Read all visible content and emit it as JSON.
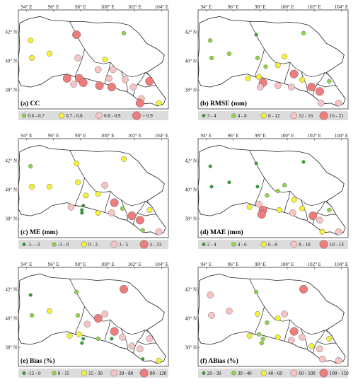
{
  "axes": {
    "lon_ticks": [
      "94° E",
      "96° E",
      "98° E",
      "100° E",
      "102° E",
      "104° E"
    ],
    "lat_ticks": [
      "42° N",
      "40° N",
      "38° N"
    ]
  },
  "colors": {
    "c1": "#2ea02e",
    "c2": "#8fd34a",
    "c3": "#f5f03a",
    "c4": "#f6c4c4",
    "c5": "#ec7d7d",
    "legend_bg": "#dcdcdc",
    "boundary": "#222222"
  },
  "panels": [
    {
      "label": "(a) CC",
      "legend": [
        {
          "label": "0.6 - 0.7",
          "cls": 2
        },
        {
          "label": "0.7 - 0.8",
          "cls": 3
        },
        {
          "label": "0.8 - 0.9",
          "cls": 4
        },
        {
          "label": "> 0.9",
          "cls": 5
        }
      ],
      "stations": [
        {
          "lon": 94.3,
          "lat": 41.4,
          "cls": 3
        },
        {
          "lon": 94.4,
          "lat": 40.2,
          "cls": 3
        },
        {
          "lon": 95.7,
          "lat": 40.5,
          "cls": 3
        },
        {
          "lon": 97.7,
          "lat": 41.8,
          "cls": 5
        },
        {
          "lon": 97.8,
          "lat": 40.2,
          "cls": 4
        },
        {
          "lon": 101.2,
          "lat": 41.9,
          "cls": 2
        },
        {
          "lon": 99.8,
          "lat": 40.1,
          "cls": 3
        },
        {
          "lon": 99.3,
          "lat": 39.4,
          "cls": 4
        },
        {
          "lon": 100.4,
          "lat": 39.4,
          "cls": 4
        },
        {
          "lon": 100.1,
          "lat": 38.8,
          "cls": 4
        },
        {
          "lon": 97.0,
          "lat": 38.8,
          "cls": 5
        },
        {
          "lon": 97.9,
          "lat": 38.8,
          "cls": 5
        },
        {
          "lon": 98.2,
          "lat": 38.5,
          "cls": 5
        },
        {
          "lon": 97.5,
          "lat": 38.4,
          "cls": 4
        },
        {
          "lon": 99.4,
          "lat": 38.3,
          "cls": 5
        },
        {
          "lon": 100.3,
          "lat": 38.2,
          "cls": 5
        },
        {
          "lon": 101.3,
          "lat": 38.7,
          "cls": 4
        },
        {
          "lon": 101.9,
          "lat": 38.2,
          "cls": 4
        },
        {
          "lon": 102.5,
          "lat": 37.4,
          "cls": 4
        },
        {
          "lon": 103.1,
          "lat": 38.6,
          "cls": 5
        },
        {
          "lon": 102.4,
          "lat": 37.1,
          "cls": 5
        },
        {
          "lon": 103.8,
          "lat": 37.1,
          "cls": 3
        }
      ]
    },
    {
      "label": "(b) RMSE (mm)",
      "legend": [
        {
          "label": "3 - 4",
          "cls": 1
        },
        {
          "label": "4 - 8",
          "cls": 2
        },
        {
          "label": "8 - 12",
          "cls": 3
        },
        {
          "label": "12 - 16",
          "cls": 4
        },
        {
          "label": "16 - 21",
          "cls": 5
        }
      ],
      "stations": [
        {
          "lon": 94.3,
          "lat": 41.4,
          "cls": 2
        },
        {
          "lon": 94.4,
          "lat": 40.2,
          "cls": 2
        },
        {
          "lon": 95.7,
          "lat": 40.5,
          "cls": 2
        },
        {
          "lon": 97.7,
          "lat": 41.8,
          "cls": 1
        },
        {
          "lon": 97.8,
          "lat": 40.2,
          "cls": 2
        },
        {
          "lon": 101.2,
          "lat": 41.9,
          "cls": 2
        },
        {
          "lon": 99.8,
          "lat": 40.3,
          "cls": 3
        },
        {
          "lon": 99.3,
          "lat": 39.7,
          "cls": 3
        },
        {
          "lon": 98.4,
          "lat": 39.6,
          "cls": 2
        },
        {
          "lon": 100.5,
          "lat": 39.1,
          "cls": 5
        },
        {
          "lon": 97.1,
          "lat": 38.8,
          "cls": 3
        },
        {
          "lon": 97.9,
          "lat": 38.9,
          "cls": 3
        },
        {
          "lon": 98.2,
          "lat": 38.5,
          "cls": 5
        },
        {
          "lon": 98.0,
          "lat": 38.2,
          "cls": 4
        },
        {
          "lon": 99.3,
          "lat": 38.3,
          "cls": 4
        },
        {
          "lon": 100.3,
          "lat": 38.2,
          "cls": 4
        },
        {
          "lon": 101.1,
          "lat": 38.7,
          "cls": 3
        },
        {
          "lon": 101.8,
          "lat": 38.2,
          "cls": 5
        },
        {
          "lon": 102.4,
          "lat": 37.9,
          "cls": 5
        },
        {
          "lon": 103.1,
          "lat": 38.6,
          "cls": 2
        },
        {
          "lon": 102.5,
          "lat": 37.1,
          "cls": 4
        },
        {
          "lon": 103.8,
          "lat": 37.1,
          "cls": 4
        }
      ]
    },
    {
      "label": "(c) ME (mm)",
      "legend": [
        {
          "label": "-5 - -3",
          "cls": 1
        },
        {
          "label": "-3 - 0",
          "cls": 2
        },
        {
          "label": "0 - 3",
          "cls": 3
        },
        {
          "label": "3 - 5",
          "cls": 4
        },
        {
          "label": "5 - 13",
          "cls": 5
        }
      ],
      "stations": [
        {
          "lon": 94.3,
          "lat": 41.6,
          "cls": 2
        },
        {
          "lon": 94.4,
          "lat": 40.2,
          "cls": 3
        },
        {
          "lon": 95.7,
          "lat": 40.2,
          "cls": 3
        },
        {
          "lon": 97.7,
          "lat": 41.8,
          "cls": 3
        },
        {
          "lon": 97.8,
          "lat": 40.5,
          "cls": 3
        },
        {
          "lon": 101.2,
          "lat": 42.1,
          "cls": 3
        },
        {
          "lon": 99.8,
          "lat": 40.3,
          "cls": 4
        },
        {
          "lon": 99.3,
          "lat": 39.7,
          "cls": 3
        },
        {
          "lon": 98.4,
          "lat": 39.6,
          "cls": 3
        },
        {
          "lon": 100.5,
          "lat": 39.1,
          "cls": 5
        },
        {
          "lon": 97.3,
          "lat": 38.8,
          "cls": 4
        },
        {
          "lon": 98.2,
          "lat": 38.9,
          "cls": 1
        },
        {
          "lon": 98.1,
          "lat": 38.6,
          "cls": 1
        },
        {
          "lon": 98.1,
          "lat": 38.4,
          "cls": 1
        },
        {
          "lon": 99.3,
          "lat": 38.4,
          "cls": 3
        },
        {
          "lon": 100.3,
          "lat": 38.4,
          "cls": 4
        },
        {
          "lon": 101.1,
          "lat": 38.7,
          "cls": 2
        },
        {
          "lon": 101.8,
          "lat": 38.2,
          "cls": 5
        },
        {
          "lon": 102.4,
          "lat": 37.9,
          "cls": 5
        },
        {
          "lon": 103.1,
          "lat": 38.6,
          "cls": 3
        },
        {
          "lon": 102.6,
          "lat": 37.2,
          "cls": 2
        },
        {
          "lon": 103.8,
          "lat": 37.1,
          "cls": 4
        }
      ]
    },
    {
      "label": "(d) MAE (mm)",
      "legend": [
        {
          "label": "2 - 4",
          "cls": 1
        },
        {
          "label": "4 - 6",
          "cls": 2
        },
        {
          "label": "6 - 8",
          "cls": 3
        },
        {
          "label": "8 - 10",
          "cls": 4
        },
        {
          "label": "10 - 13",
          "cls": 5
        }
      ],
      "stations": [
        {
          "lon": 94.3,
          "lat": 41.6,
          "cls": 1
        },
        {
          "lon": 94.4,
          "lat": 40.2,
          "cls": 1
        },
        {
          "lon": 95.7,
          "lat": 40.5,
          "cls": 1
        },
        {
          "lon": 97.7,
          "lat": 41.8,
          "cls": 1
        },
        {
          "lon": 97.8,
          "lat": 40.2,
          "cls": 1
        },
        {
          "lon": 101.2,
          "lat": 41.9,
          "cls": 1
        },
        {
          "lon": 99.8,
          "lat": 40.3,
          "cls": 2
        },
        {
          "lon": 99.3,
          "lat": 39.9,
          "cls": 2
        },
        {
          "lon": 98.5,
          "lat": 39.6,
          "cls": 2
        },
        {
          "lon": 100.5,
          "lat": 39.3,
          "cls": 3
        },
        {
          "lon": 97.2,
          "lat": 38.8,
          "cls": 3
        },
        {
          "lon": 97.9,
          "lat": 39.0,
          "cls": 4
        },
        {
          "lon": 98.2,
          "lat": 38.6,
          "cls": 5
        },
        {
          "lon": 98.1,
          "lat": 38.3,
          "cls": 5
        },
        {
          "lon": 99.4,
          "lat": 38.6,
          "cls": 3
        },
        {
          "lon": 100.4,
          "lat": 38.4,
          "cls": 4
        },
        {
          "lon": 101.1,
          "lat": 38.7,
          "cls": 3
        },
        {
          "lon": 101.9,
          "lat": 38.2,
          "cls": 5
        },
        {
          "lon": 102.4,
          "lat": 37.9,
          "cls": 4
        },
        {
          "lon": 103.1,
          "lat": 38.6,
          "cls": 2
        },
        {
          "lon": 102.6,
          "lat": 37.1,
          "cls": 3
        },
        {
          "lon": 103.8,
          "lat": 37.1,
          "cls": 4
        }
      ]
    },
    {
      "label": "(e) Bias (%)",
      "legend": [
        {
          "label": "-15 - 0",
          "cls": 1
        },
        {
          "label": "0 - 15",
          "cls": 2
        },
        {
          "label": "15 - 30",
          "cls": 3
        },
        {
          "label": "30 - 80",
          "cls": 4
        },
        {
          "label": "80 - 120",
          "cls": 5
        }
      ],
      "stations": [
        {
          "lon": 94.3,
          "lat": 41.6,
          "cls": 1
        },
        {
          "lon": 94.4,
          "lat": 40.2,
          "cls": 2
        },
        {
          "lon": 95.7,
          "lat": 40.5,
          "cls": 3
        },
        {
          "lon": 97.7,
          "lat": 41.8,
          "cls": 2
        },
        {
          "lon": 97.8,
          "lat": 40.2,
          "cls": 2
        },
        {
          "lon": 101.2,
          "lat": 42.0,
          "cls": 5
        },
        {
          "lon": 99.8,
          "lat": 40.3,
          "cls": 4
        },
        {
          "lon": 99.3,
          "lat": 40.0,
          "cls": 5
        },
        {
          "lon": 98.5,
          "lat": 39.6,
          "cls": 4
        },
        {
          "lon": 100.5,
          "lat": 39.1,
          "cls": 5
        },
        {
          "lon": 97.2,
          "lat": 38.8,
          "cls": 3
        },
        {
          "lon": 97.9,
          "lat": 38.9,
          "cls": 3
        },
        {
          "lon": 98.2,
          "lat": 38.6,
          "cls": 1
        },
        {
          "lon": 98.1,
          "lat": 38.3,
          "cls": 1
        },
        {
          "lon": 99.3,
          "lat": 38.6,
          "cls": 2
        },
        {
          "lon": 100.3,
          "lat": 38.6,
          "cls": 1
        },
        {
          "lon": 101.1,
          "lat": 38.7,
          "cls": 4
        },
        {
          "lon": 101.8,
          "lat": 38.1,
          "cls": 4
        },
        {
          "lon": 102.4,
          "lat": 37.9,
          "cls": 4
        },
        {
          "lon": 103.1,
          "lat": 38.6,
          "cls": 4
        },
        {
          "lon": 102.6,
          "lat": 37.2,
          "cls": 1
        },
        {
          "lon": 103.8,
          "lat": 37.1,
          "cls": 3
        }
      ]
    },
    {
      "label": "(f) ABias (%)",
      "legend": [
        {
          "label": "20 - 30",
          "cls": 1
        },
        {
          "label": "30 - 40",
          "cls": 2
        },
        {
          "label": "40 - 60",
          "cls": 3
        },
        {
          "label": "60 - 100",
          "cls": 4
        },
        {
          "label": "100 - 150",
          "cls": 5
        }
      ],
      "stations": [
        {
          "lon": 94.3,
          "lat": 41.6,
          "cls": 4
        },
        {
          "lon": 94.4,
          "lat": 40.2,
          "cls": 4
        },
        {
          "lon": 95.7,
          "lat": 40.5,
          "cls": 4
        },
        {
          "lon": 97.7,
          "lat": 41.8,
          "cls": 2
        },
        {
          "lon": 97.8,
          "lat": 40.3,
          "cls": 3
        },
        {
          "lon": 101.2,
          "lat": 42.0,
          "cls": 5
        },
        {
          "lon": 99.8,
          "lat": 40.3,
          "cls": 4
        },
        {
          "lon": 99.3,
          "lat": 40.0,
          "cls": 3
        },
        {
          "lon": 98.5,
          "lat": 39.7,
          "cls": 2
        },
        {
          "lon": 100.5,
          "lat": 39.1,
          "cls": 5
        },
        {
          "lon": 97.2,
          "lat": 38.8,
          "cls": 3
        },
        {
          "lon": 97.9,
          "lat": 38.9,
          "cls": 2
        },
        {
          "lon": 98.2,
          "lat": 38.6,
          "cls": 2
        },
        {
          "lon": 98.1,
          "lat": 38.3,
          "cls": 2
        },
        {
          "lon": 99.3,
          "lat": 38.7,
          "cls": 3
        },
        {
          "lon": 100.3,
          "lat": 38.5,
          "cls": 4
        },
        {
          "lon": 101.1,
          "lat": 38.7,
          "cls": 4
        },
        {
          "lon": 101.8,
          "lat": 38.1,
          "cls": 3
        },
        {
          "lon": 102.4,
          "lat": 37.9,
          "cls": 4
        },
        {
          "lon": 103.1,
          "lat": 38.6,
          "cls": 3
        },
        {
          "lon": 102.6,
          "lat": 37.2,
          "cls": 4
        },
        {
          "lon": 103.8,
          "lat": 37.1,
          "cls": 4
        }
      ]
    }
  ]
}
